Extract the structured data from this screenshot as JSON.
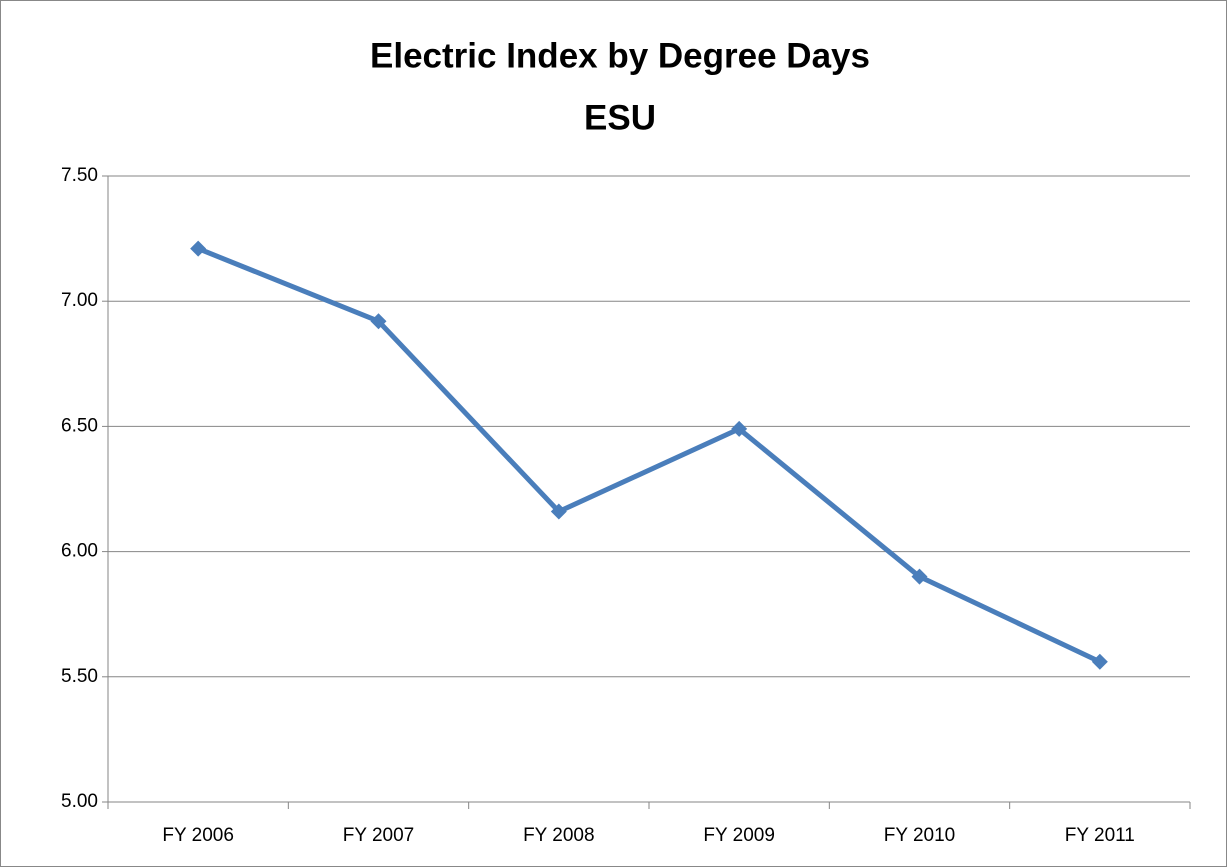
{
  "chart_data": {
    "type": "line",
    "title": "Electric Index by Degree Days",
    "subtitle": "ESU",
    "categories": [
      "FY 2006",
      "FY 2007",
      "FY 2008",
      "FY 2009",
      "FY 2010",
      "FY 2011"
    ],
    "series": [
      {
        "name": "ESU",
        "color": "#4a7ebb",
        "values": [
          7.21,
          6.92,
          6.16,
          6.49,
          5.9,
          5.56
        ]
      }
    ],
    "ylim": [
      5,
      7.5
    ],
    "yticks": [
      {
        "value": 5,
        "label": "5.00"
      },
      {
        "value": 5.5,
        "label": "5.50"
      },
      {
        "value": 6,
        "label": "6.00"
      },
      {
        "value": 6.5,
        "label": "6.50"
      },
      {
        "value": 7,
        "label": "7.00"
      },
      {
        "value": 7.5,
        "label": "7.50"
      }
    ],
    "grid": true,
    "legend": false
  }
}
